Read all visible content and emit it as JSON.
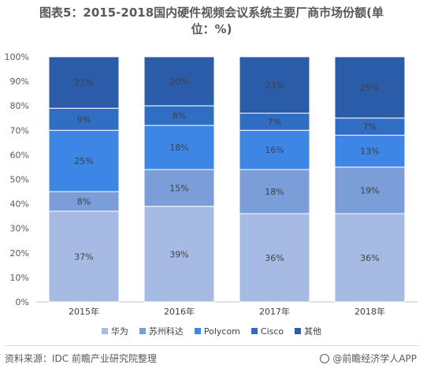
{
  "title_lines": [
    "图表5：2015-2018国内硬件视频会议系统主要厂商市场份额(单",
    "位：%)"
  ],
  "chart_data": {
    "type": "bar",
    "stacked": true,
    "categories": [
      "2015年",
      "2016年",
      "2017年",
      "2018年"
    ],
    "y_ticks": [
      "0%",
      "10%",
      "20%",
      "30%",
      "40%",
      "50%",
      "60%",
      "70%",
      "80%",
      "90%",
      "100%"
    ],
    "ylim": [
      0,
      100
    ],
    "series": [
      {
        "name": "华为",
        "color": "#a6bbe3",
        "values": [
          37,
          39,
          36,
          36
        ]
      },
      {
        "name": "苏州科达",
        "color": "#7b9ed8",
        "values": [
          8,
          15,
          18,
          19
        ]
      },
      {
        "name": "Polycom",
        "color": "#3d86e6",
        "values": [
          25,
          18,
          16,
          13
        ]
      },
      {
        "name": "Cisco",
        "color": "#2f6ec3",
        "values": [
          9,
          8,
          7,
          7
        ]
      },
      {
        "name": "其他",
        "color": "#2a5caa",
        "values": [
          21,
          20,
          23,
          25
        ]
      }
    ],
    "legend_position": "bottom",
    "grid": false
  },
  "footer": {
    "source": "资料来源：IDC 前瞻产业研究院整理",
    "brand": "@前瞻经济学人APP"
  }
}
